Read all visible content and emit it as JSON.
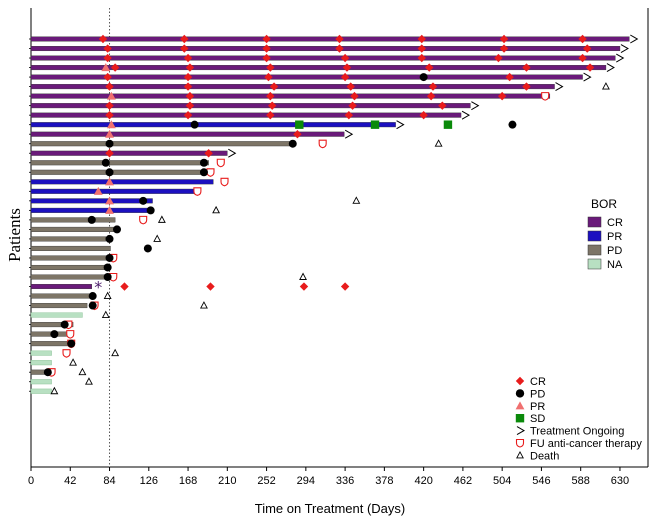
{
  "chart_data": {
    "type": "swimmer",
    "xlabel": "Time on Treatment (Days)",
    "ylabel": "Patients",
    "xlim": [
      0,
      660
    ],
    "xticks": [
      0,
      42,
      84,
      126,
      168,
      210,
      252,
      294,
      336,
      378,
      420,
      462,
      504,
      546,
      588,
      630
    ],
    "reference_line_x": 84,
    "bor_legend": {
      "title": "BOR",
      "entries": [
        {
          "label": "CR",
          "color": "#6a1a7a"
        },
        {
          "label": "PR",
          "color": "#1c10c0"
        },
        {
          "label": "PD",
          "color": "#7d7567"
        },
        {
          "label": "NA",
          "color": "#b8e0c2"
        }
      ]
    },
    "marker_legend": [
      {
        "label": "CR",
        "symbol": "diamond",
        "color": "#e81c1c"
      },
      {
        "label": "PD",
        "symbol": "circle",
        "color": "#000000"
      },
      {
        "label": "PR",
        "symbol": "triangle",
        "color": "#f07070"
      },
      {
        "label": "SD",
        "symbol": "square",
        "color": "#0a8a0a"
      },
      {
        "label": "Treatment Ongoing",
        "symbol": "chevron",
        "color": "#000000"
      },
      {
        "label": "FU anti-cancer therapy",
        "symbol": "shield",
        "color": "#e81c1c"
      },
      {
        "label": "Death",
        "symbol": "open-triangle",
        "color": "#000000"
      }
    ],
    "patients": [
      {
        "bor": "CR",
        "end": 640,
        "ongoing": true,
        "cr": [
          77,
          164,
          252,
          330,
          418,
          506,
          590
        ]
      },
      {
        "bor": "CR",
        "end": 630,
        "ongoing": true,
        "cr": [
          82,
          164,
          252,
          330,
          418,
          506,
          595
        ]
      },
      {
        "bor": "CR",
        "end": 625,
        "ongoing": true,
        "cr": [
          82,
          168,
          252,
          336,
          418,
          500,
          590
        ]
      },
      {
        "bor": "CR",
        "end": 615,
        "ongoing": true,
        "pr": [
          80
        ],
        "cr": [
          90,
          170,
          256,
          338,
          426,
          530,
          598
        ]
      },
      {
        "bor": "CR",
        "end": 590,
        "ongoing": true,
        "cr": [
          82,
          168,
          254,
          336,
          512
        ],
        "pd": [
          420
        ]
      },
      {
        "bor": "CR",
        "end": 560,
        "ongoing": true,
        "cr": [
          84,
          168,
          260,
          342,
          430,
          530
        ],
        "death": [
          615
        ]
      },
      {
        "bor": "CR",
        "end": 555,
        "fu": [
          550
        ],
        "pr": [
          86
        ],
        "cr": [
          170,
          256,
          346,
          428,
          504
        ]
      },
      {
        "bor": "CR",
        "end": 470,
        "ongoing": true,
        "cr": [
          84,
          170,
          258,
          344,
          440
        ]
      },
      {
        "bor": "CR",
        "end": 460,
        "ongoing": true,
        "cr": [
          84,
          168,
          256,
          340,
          420
        ]
      },
      {
        "bor": "PR",
        "end": 390,
        "ongoing": true,
        "pr": [
          86
        ],
        "pd": [
          175,
          515
        ],
        "sd": [
          287,
          368,
          446
        ]
      },
      {
        "bor": "CR",
        "end": 335,
        "ongoing": true,
        "pr": [
          84
        ],
        "cr": [
          285
        ]
      },
      {
        "bor": "PD",
        "end": 280,
        "pd": [
          84,
          280
        ],
        "fu": [
          312
        ],
        "death": [
          436
        ]
      },
      {
        "bor": "CR",
        "end": 210,
        "ongoing": true,
        "cr": [
          84,
          190
        ]
      },
      {
        "bor": "PD",
        "end": 190,
        "pd": [
          80,
          185
        ],
        "fu": [
          203
        ]
      },
      {
        "bor": "PD",
        "end": 190,
        "pd": [
          84,
          185
        ],
        "fu": [
          192
        ]
      },
      {
        "bor": "PR",
        "end": 195,
        "pr": [
          84
        ],
        "fu": [
          207
        ]
      },
      {
        "bor": "PR",
        "end": 180,
        "pr": [
          72
        ],
        "fu": [
          178
        ]
      },
      {
        "bor": "PR",
        "end": 130,
        "pr": [
          84
        ],
        "pd": [
          120
        ],
        "death": [
          348
        ]
      },
      {
        "bor": "PR",
        "end": 130,
        "pr": [
          84
        ],
        "pd": [
          128
        ],
        "death": [
          198
        ]
      },
      {
        "bor": "PD",
        "end": 90,
        "pd": [
          65
        ],
        "fu": [
          120
        ],
        "death": [
          140
        ]
      },
      {
        "bor": "PD",
        "end": 90,
        "pd": [
          92
        ]
      },
      {
        "bor": "PD",
        "end": 80,
        "pd": [
          84
        ],
        "death": [
          135
        ]
      },
      {
        "bor": "PD",
        "end": 85,
        "pd": [
          125
        ]
      },
      {
        "bor": "PD",
        "end": 85,
        "pd": [
          84
        ],
        "fu": [
          88
        ]
      },
      {
        "bor": "PD",
        "end": 85,
        "pd": [
          82
        ]
      },
      {
        "bor": "PD",
        "end": 85,
        "pd": [
          82
        ],
        "fu": [
          88
        ],
        "death": [
          291
        ]
      },
      {
        "bor": "CR",
        "end": 65,
        "asterisk": [
          72
        ],
        "cr": [
          100,
          192,
          292,
          336
        ]
      },
      {
        "bor": "PD",
        "end": 65,
        "pd": [
          66
        ],
        "death": [
          82
        ]
      },
      {
        "bor": "PD",
        "end": 60,
        "pd": [
          66
        ],
        "fu": [
          68
        ],
        "death": [
          185
        ]
      },
      {
        "bor": "NA",
        "end": 55,
        "death": [
          80
        ]
      },
      {
        "bor": "PD",
        "end": 45,
        "pd": [
          36
        ],
        "fu": [
          40
        ]
      },
      {
        "bor": "PD",
        "end": 45,
        "pd": [
          25
        ],
        "fu": [
          42
        ]
      },
      {
        "bor": "PD",
        "end": 45,
        "pd": [
          43
        ],
        "fu": [
          43
        ]
      },
      {
        "bor": "NA",
        "end": 22,
        "fu": [
          38
        ],
        "death": [
          90
        ]
      },
      {
        "bor": "NA",
        "end": 22,
        "death": [
          45
        ]
      },
      {
        "bor": "PD",
        "end": 25,
        "pd": [
          18
        ],
        "fu": [
          22
        ],
        "death": [
          55
        ]
      },
      {
        "bor": "NA",
        "end": 22,
        "death": [
          62
        ]
      },
      {
        "bor": "NA",
        "end": 22,
        "death": [
          25
        ]
      }
    ]
  }
}
